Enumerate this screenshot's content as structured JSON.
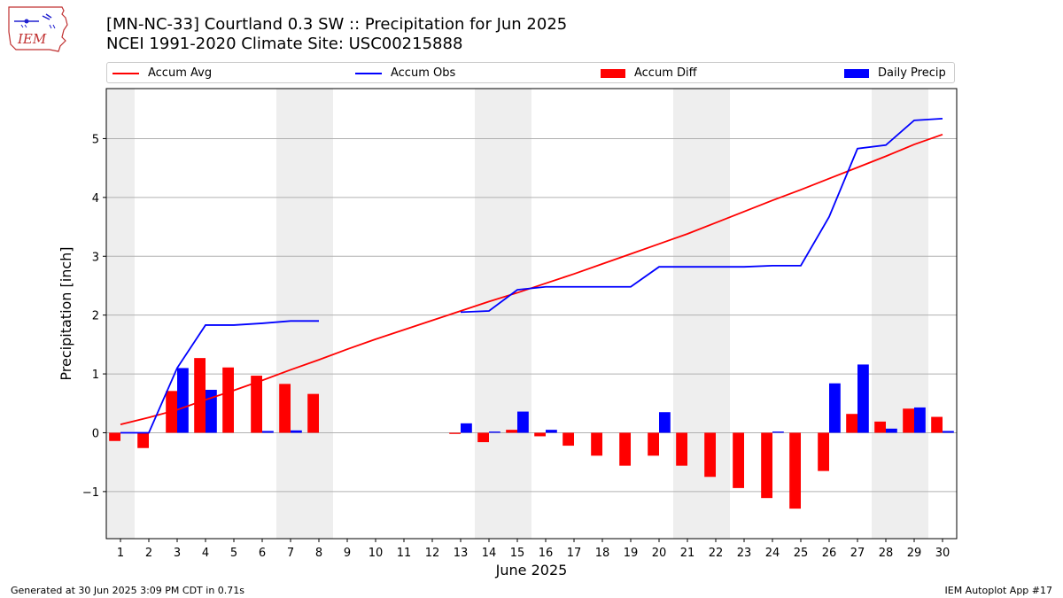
{
  "header": {
    "title_line1": "[MN-NC-33] Courtland 0.3 SW :: Precipitation for Jun 2025",
    "title_line2": "NCEI 1991-2020 Climate Site: USC00215888"
  },
  "logo": {
    "text": "IEM"
  },
  "footer": {
    "generated": "Generated at 30 Jun 2025 3:09 PM CDT in 0.71s",
    "app": "IEM Autoplot App #17"
  },
  "colors": {
    "avg": "#ff0000",
    "obs": "#0000ff",
    "diff": "#ff0000",
    "daily": "#0000ff",
    "weekend": "#eeeeee",
    "grid": "#b0b0b0"
  },
  "chart_data": {
    "type": "bar",
    "title": "[MN-NC-33] Courtland 0.3 SW :: Precipitation for Jun 2025",
    "subtitle": "NCEI 1991-2020 Climate Site: USC00215888",
    "xlabel": "June 2025",
    "ylabel": "Precipitation [inch]",
    "xlim": [
      0.5,
      30.5
    ],
    "ylim": [
      -1.8,
      5.85
    ],
    "yticks": [
      -1,
      0,
      1,
      2,
      3,
      4,
      5
    ],
    "ytick_labels": [
      "−1",
      "0",
      "1",
      "2",
      "3",
      "4",
      "5"
    ],
    "grid": "horizontal",
    "legend_position": "top",
    "shaded_days": [
      [
        0.5,
        1.5
      ],
      [
        6.5,
        8.5
      ],
      [
        13.5,
        15.5
      ],
      [
        20.5,
        22.5
      ],
      [
        27.5,
        29.5
      ]
    ],
    "days": [
      1,
      2,
      3,
      4,
      5,
      6,
      7,
      8,
      9,
      10,
      11,
      12,
      13,
      14,
      15,
      16,
      17,
      18,
      19,
      20,
      21,
      22,
      23,
      24,
      25,
      26,
      27,
      28,
      29,
      30
    ],
    "series": [
      {
        "name": "Accum Avg",
        "kind": "line",
        "color": "#ff0000",
        "x": [
          1,
          2,
          3,
          4,
          5,
          6,
          7,
          8,
          9,
          10,
          11,
          12,
          13,
          14,
          15,
          16,
          17,
          18,
          19,
          20,
          21,
          22,
          23,
          24,
          25,
          26,
          27,
          28,
          29,
          30
        ],
        "values": [
          0.14,
          0.26,
          0.39,
          0.56,
          0.72,
          0.89,
          1.07,
          1.24,
          1.42,
          1.59,
          1.75,
          1.91,
          2.07,
          2.23,
          2.38,
          2.54,
          2.7,
          2.87,
          3.04,
          3.21,
          3.38,
          3.57,
          3.76,
          3.95,
          4.13,
          4.32,
          4.51,
          4.7,
          4.9,
          5.07
        ]
      },
      {
        "name": "Accum Obs",
        "kind": "line",
        "color": "#0000ff",
        "x": [
          1,
          2,
          3,
          4,
          5,
          6,
          7,
          8,
          13,
          14,
          15,
          16,
          17,
          18,
          19,
          20,
          21,
          22,
          23,
          24,
          25,
          26,
          27,
          28,
          29,
          30
        ],
        "values": [
          0.0,
          0.0,
          1.1,
          1.83,
          1.83,
          1.86,
          1.9,
          1.9,
          2.05,
          2.07,
          2.43,
          2.48,
          2.48,
          2.48,
          2.48,
          2.82,
          2.82,
          2.82,
          2.82,
          2.84,
          2.84,
          3.67,
          4.83,
          4.89,
          5.31,
          5.34
        ],
        "segments_break_after_day": 8
      },
      {
        "name": "Accum Diff",
        "kind": "bar",
        "color": "#ff0000",
        "x": [
          1,
          2,
          3,
          4,
          5,
          6,
          7,
          8,
          13,
          14,
          15,
          16,
          17,
          18,
          19,
          20,
          21,
          22,
          23,
          24,
          25,
          26,
          27,
          28,
          29,
          30
        ],
        "values": [
          -0.14,
          -0.26,
          0.71,
          1.27,
          1.11,
          0.97,
          0.83,
          0.66,
          -0.02,
          -0.16,
          0.05,
          -0.06,
          -0.22,
          -0.39,
          -0.56,
          -0.39,
          -0.56,
          -0.75,
          -0.94,
          -1.11,
          -1.29,
          -0.65,
          0.32,
          0.19,
          0.41,
          0.27
        ]
      },
      {
        "name": "Daily Precip",
        "kind": "bar",
        "color": "#0000ff",
        "x": [
          1,
          2,
          3,
          4,
          5,
          6,
          7,
          8,
          13,
          14,
          15,
          16,
          17,
          18,
          19,
          20,
          21,
          22,
          23,
          24,
          25,
          26,
          27,
          28,
          29,
          30
        ],
        "values": [
          0.0,
          0.0,
          1.1,
          0.73,
          0.0,
          0.03,
          0.04,
          0.0,
          0.16,
          0.02,
          0.36,
          0.05,
          0.0,
          0.0,
          0.0,
          0.35,
          0.0,
          0.0,
          0.0,
          0.02,
          0.0,
          0.84,
          1.16,
          0.07,
          0.43,
          0.03
        ]
      }
    ]
  }
}
